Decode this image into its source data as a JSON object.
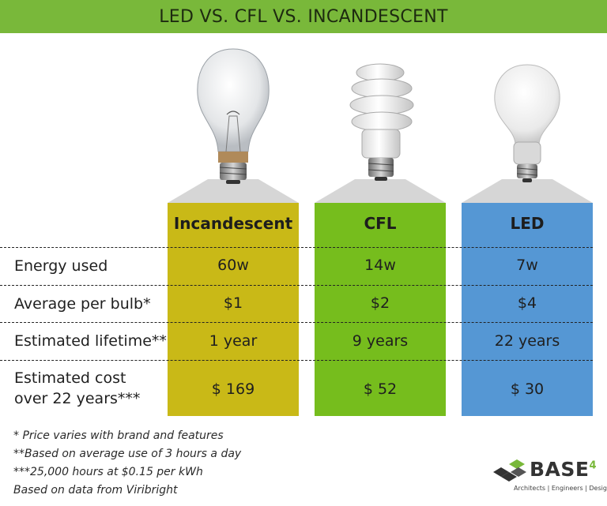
{
  "title": "LED VS. CFL VS. INCANDESCENT",
  "colors": {
    "title_bar": "#79b83a",
    "incandescent": "#c9b917",
    "cfl": "#76bd1d",
    "led": "#5597d4"
  },
  "columns": [
    {
      "name": "Incandescent",
      "energy": "60w",
      "price": "$1",
      "lifetime": "1 year",
      "cost": "$ 169"
    },
    {
      "name": "CFL",
      "energy": "14w",
      "price": "$2",
      "lifetime": "9 years",
      "cost": "$ 52"
    },
    {
      "name": "LED",
      "energy": "7w",
      "price": "$4",
      "lifetime": "22 years",
      "cost": "$ 30"
    }
  ],
  "rows": {
    "energy": "Energy used",
    "price": "Average per bulb*",
    "lifetime": "Estimated lifetime**",
    "cost_line1": "Estimated cost",
    "cost_line2": "over 22 years***"
  },
  "footnotes": [
    "* Price varies with brand and features",
    "**Based on average use of 3 hours a day",
    "***25,000 hours at $0.15 per kWh",
    "Based on data from Viribright"
  ],
  "logo": {
    "name": "BASE",
    "sup": "4",
    "tagline": "Architects | Engineers | Designers"
  },
  "icons": {
    "incandescent": "incandescent-bulb-icon",
    "cfl": "cfl-bulb-icon",
    "led": "led-bulb-icon",
    "logo": "base4-logo-icon"
  }
}
